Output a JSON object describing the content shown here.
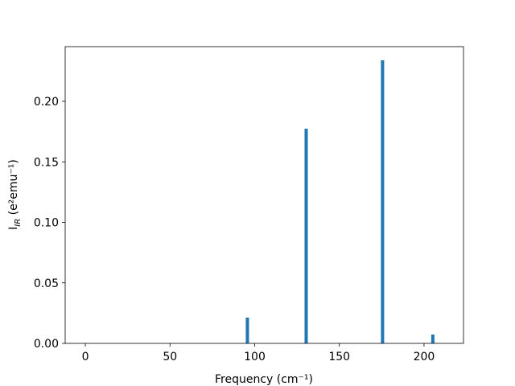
{
  "chart_data": {
    "type": "bar",
    "xlabel": "Frequency (cm⁻¹)",
    "ylabel_parts": [
      "I",
      "IR",
      " (e²emu⁻¹)"
    ],
    "x": [
      95.7,
      130.4,
      175.5,
      205.2
    ],
    "values": [
      0.0213,
      0.1774,
      0.2339,
      0.0073
    ],
    "color": "#1f77b4",
    "xlim": [
      -11.9,
      223.3
    ],
    "ylim": [
      0,
      0.2452
    ],
    "xticks": [
      0,
      50,
      100,
      150,
      200
    ],
    "yticks": [
      {
        "value": 0,
        "label": "0.00"
      },
      {
        "value": 0.05,
        "label": "0.05"
      },
      {
        "value": 0.1,
        "label": "0.10"
      },
      {
        "value": 0.15,
        "label": "0.15"
      },
      {
        "value": 0.2,
        "label": "0.20"
      }
    ]
  }
}
